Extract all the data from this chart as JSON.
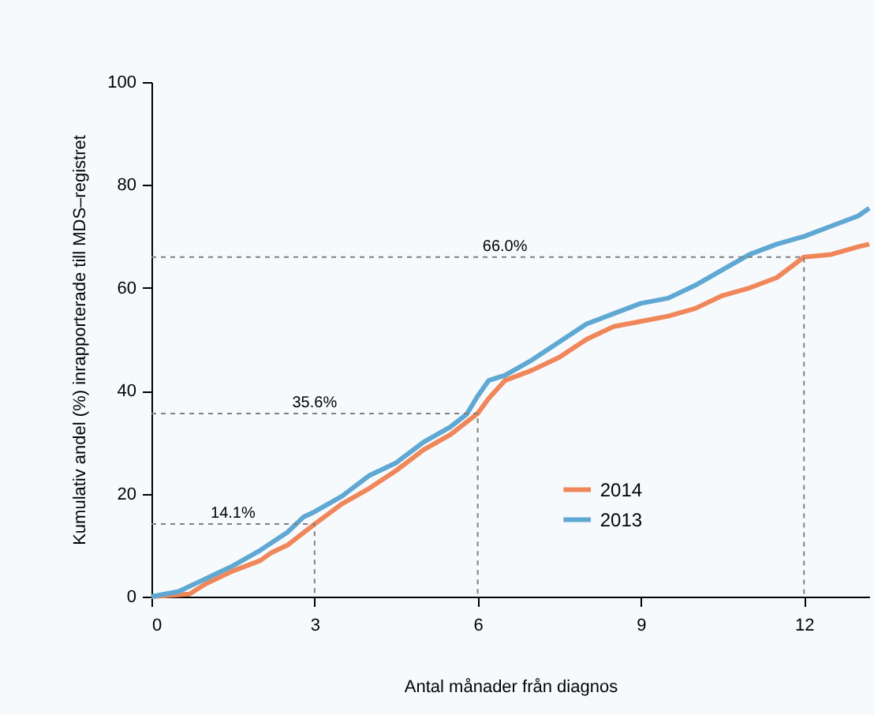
{
  "chart_data": {
    "type": "line",
    "xlabel": "Antal månader från diagnos",
    "ylabel": "Kumulativ andel (%) inrapporterade till MDS–registret",
    "xlim": [
      0,
      13.2
    ],
    "xticks": [
      0,
      3,
      6,
      9,
      12
    ],
    "ylim": [
      0,
      100
    ],
    "yticks": [
      0,
      20,
      40,
      60,
      80,
      100
    ],
    "grid": false,
    "legend": "bottom right",
    "series": [
      {
        "name": "2014",
        "color": "#f0875a",
        "x": [
          0,
          0.7,
          1,
          1.5,
          2,
          2.2,
          2.5,
          3,
          3.5,
          4,
          4.5,
          5,
          5.5,
          6,
          6.2,
          6.5,
          7,
          7.5,
          8,
          8.5,
          9,
          9.5,
          10,
          10.5,
          11,
          11.5,
          12,
          12.5,
          13,
          13.2
        ],
        "values": [
          0,
          0.5,
          2.5,
          5,
          7,
          8.5,
          10,
          14.1,
          18,
          21,
          24.5,
          28.5,
          31.5,
          35.6,
          38.5,
          42,
          44,
          46.5,
          50,
          52.5,
          53.5,
          54.5,
          56,
          58.5,
          60,
          62,
          66,
          66.5,
          68,
          68.5
        ]
      },
      {
        "name": "2013",
        "color": "#5fa8d3",
        "x": [
          0,
          0.5,
          1,
          1.5,
          2,
          2.5,
          2.8,
          3,
          3.5,
          4,
          4.5,
          5,
          5.5,
          5.8,
          6,
          6.2,
          6.5,
          7,
          7.5,
          8,
          8.5,
          9,
          9.5,
          10,
          10.5,
          11,
          11.5,
          12,
          12.5,
          13,
          13.2
        ],
        "values": [
          0,
          1,
          3.5,
          6,
          9,
          12.5,
          15.5,
          16.5,
          19.5,
          23.5,
          26,
          30,
          33,
          35.5,
          39,
          42,
          43,
          46,
          49.5,
          53,
          55,
          57,
          58,
          60.5,
          63.5,
          66.5,
          68.5,
          70,
          72,
          74,
          75.5
        ]
      },
      {
        "type": "line",
        "line_style": "dashed",
        "color": "#808080",
        "x": [
          0,
          3,
          3
        ],
        "values": [
          14.1,
          14.1,
          0
        ]
      },
      {
        "type": "line",
        "line_style": "dashed",
        "color": "#808080",
        "x": [
          0,
          6,
          6
        ],
        "values": [
          35.6,
          35.6,
          0
        ]
      },
      {
        "type": "line",
        "line_style": "dashed",
        "color": "#808080",
        "x": [
          0,
          12,
          12
        ],
        "values": [
          66.0,
          66.0,
          0
        ]
      }
    ],
    "annotations": [
      {
        "text": "14.1%",
        "x": 1.5,
        "y": 14.1
      },
      {
        "text": "35.6%",
        "x": 3,
        "y": 35.6
      },
      {
        "text": "66.0%",
        "x": 6.5,
        "y": 66.0
      }
    ]
  }
}
